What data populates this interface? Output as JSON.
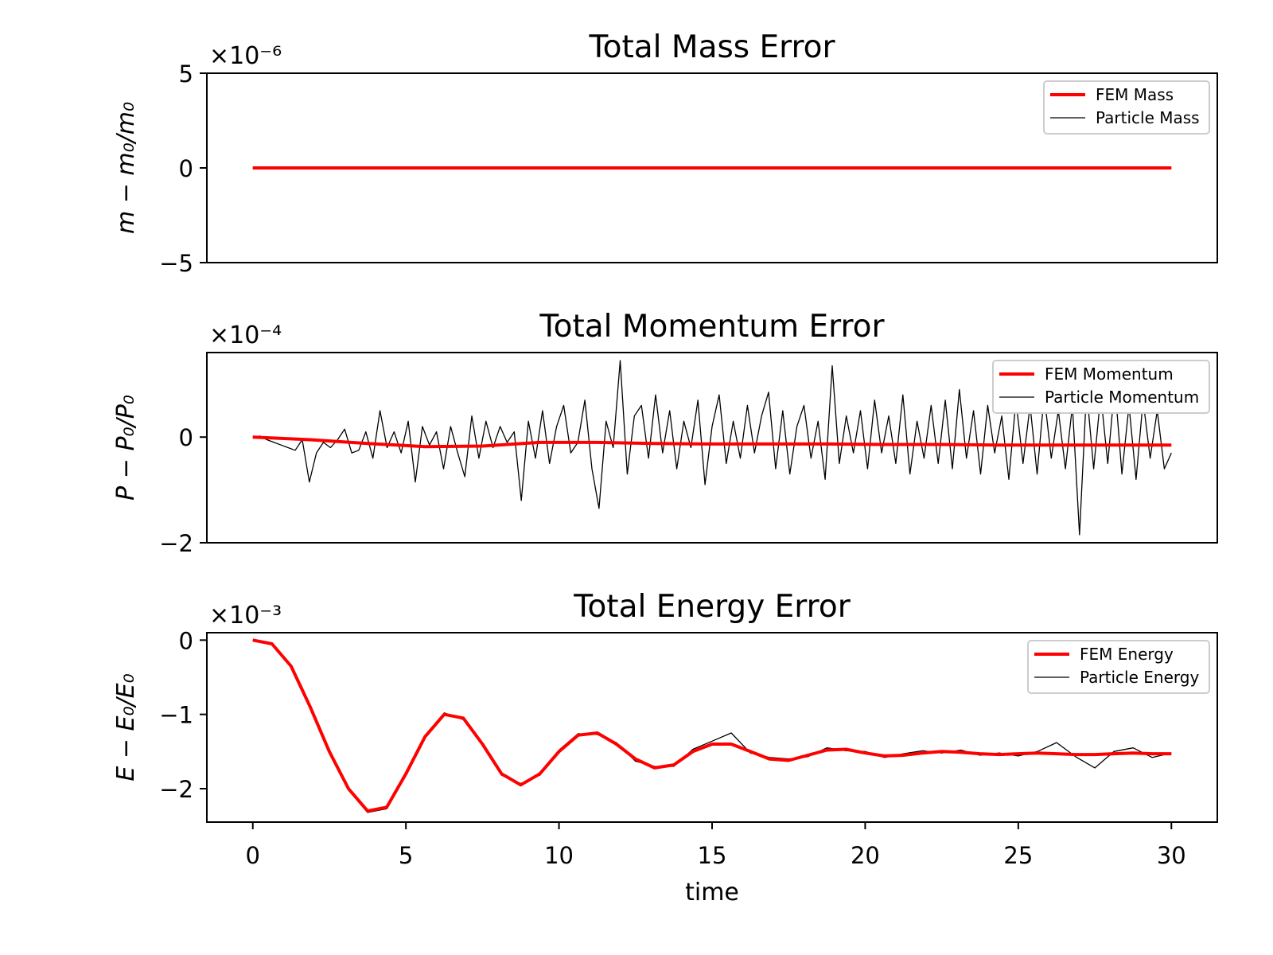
{
  "colors": {
    "fem": "#ff0000",
    "particle": "#000000",
    "axes": "#000000",
    "legend_border": "#cccccc"
  },
  "x_label": "time",
  "x_ticks": [
    0,
    5,
    10,
    15,
    20,
    25,
    30
  ],
  "x_tick_labels": [
    "0",
    "5",
    "10",
    "15",
    "20",
    "25",
    "30"
  ],
  "chart_data": [
    {
      "type": "line",
      "title": "Total Mass Error",
      "ylabel": "m − m₀/m₀",
      "scale_text": "×10⁻⁶",
      "xlim": [
        -1.5,
        31.5
      ],
      "ylim": [
        -5,
        5
      ],
      "y_ticks": [
        -5,
        0,
        5
      ],
      "y_tick_labels": [
        "−5",
        "0",
        "5"
      ],
      "legend_position": "upper right",
      "series": [
        {
          "name": "FEM Mass",
          "kind": "fem",
          "x_range": [
            0,
            30
          ],
          "values": [
            0,
            0,
            0,
            0,
            0,
            0,
            0
          ]
        },
        {
          "name": "Particle Mass",
          "kind": "particle",
          "x_range": [
            0,
            30
          ],
          "values": [
            0,
            0,
            0,
            0,
            0,
            0,
            0
          ]
        }
      ]
    },
    {
      "type": "line",
      "title": "Total Momentum Error",
      "ylabel": "P − P₀/P₀",
      "scale_text": "×10⁻⁴",
      "xlim": [
        -1.5,
        31.5
      ],
      "ylim": [
        -2,
        1.6
      ],
      "y_ticks": [
        -2,
        0
      ],
      "y_tick_labels": [
        "−2",
        "0"
      ],
      "legend_position": "upper right",
      "series": [
        {
          "name": "FEM Momentum",
          "kind": "fem",
          "x_range": [
            0,
            30
          ],
          "values": [
            0,
            -0.05,
            -0.12,
            -0.18,
            -0.17,
            -0.1,
            -0.1,
            -0.12,
            -0.13,
            -0.13,
            -0.13,
            -0.14,
            -0.14,
            -0.15,
            -0.15,
            -0.15,
            -0.15
          ]
        },
        {
          "name": "Particle Momentum",
          "kind": "particle",
          "x_range": [
            0,
            30
          ],
          "values": [
            0,
            0.02,
            -0.05,
            -0.1,
            -0.15,
            -0.2,
            -0.25,
            -0.05,
            -0.85,
            -0.3,
            -0.1,
            -0.2,
            -0.05,
            0.15,
            -0.3,
            -0.25,
            0.1,
            -0.4,
            0.5,
            -0.2,
            0.1,
            -0.3,
            0.3,
            -0.85,
            0.2,
            -0.15,
            0.1,
            -0.6,
            0.2,
            -0.3,
            -0.75,
            0.4,
            -0.4,
            0.3,
            -0.2,
            0.2,
            -0.1,
            0.1,
            -1.2,
            0.3,
            -0.4,
            0.5,
            -0.5,
            0.2,
            0.6,
            -0.3,
            -0.1,
            0.7,
            -0.6,
            -1.35,
            0.3,
            -0.2,
            1.45,
            -0.7,
            0.4,
            0.6,
            -0.4,
            0.8,
            -0.3,
            0.5,
            -0.6,
            0.3,
            -0.2,
            0.7,
            -0.9,
            0.2,
            0.8,
            -0.5,
            0.3,
            -0.4,
            0.6,
            -0.3,
            0.4,
            0.85,
            -0.6,
            0.5,
            -0.7,
            0.2,
            0.6,
            -0.4,
            0.3,
            -0.8,
            1.35,
            -0.5,
            0.4,
            -0.3,
            0.5,
            -0.6,
            0.7,
            -0.3,
            0.4,
            -0.5,
            0.8,
            -0.7,
            0.3,
            -0.4,
            0.6,
            -0.5,
            0.7,
            -0.6,
            0.9,
            -0.4,
            0.5,
            -0.7,
            0.6,
            -0.3,
            0.4,
            -0.8,
            0.7,
            -0.5,
            0.6,
            -0.7,
            0.8,
            -0.4,
            0.5,
            -0.6,
            0.6,
            -1.85,
            0.9,
            -0.6,
            0.8,
            -0.5,
            1.0,
            -0.7,
            0.6,
            -0.8,
            0.7,
            -0.4,
            0.5,
            -0.6,
            -0.3
          ]
        }
      ]
    },
    {
      "type": "line",
      "title": "Total Energy Error",
      "ylabel": "E − E₀/E₀",
      "scale_text": "×10⁻³",
      "xlim": [
        -1.5,
        31.5
      ],
      "ylim": [
        -2.45,
        0.1
      ],
      "y_ticks": [
        -2,
        -1,
        0
      ],
      "y_tick_labels": [
        "−2",
        "−1",
        "0"
      ],
      "legend_position": "upper right",
      "series": [
        {
          "name": "FEM Energy",
          "kind": "fem",
          "x_range": [
            0,
            30
          ],
          "values": [
            0,
            -0.05,
            -0.35,
            -0.9,
            -1.5,
            -2.0,
            -2.3,
            -2.25,
            -1.8,
            -1.3,
            -1.0,
            -1.05,
            -1.4,
            -1.8,
            -1.95,
            -1.8,
            -1.5,
            -1.28,
            -1.25,
            -1.4,
            -1.6,
            -1.72,
            -1.68,
            -1.5,
            -1.4,
            -1.4,
            -1.5,
            -1.6,
            -1.62,
            -1.55,
            -1.48,
            -1.47,
            -1.52,
            -1.56,
            -1.55,
            -1.52,
            -1.5,
            -1.51,
            -1.53,
            -1.54,
            -1.53,
            -1.52,
            -1.53,
            -1.54,
            -1.54,
            -1.53,
            -1.52,
            -1.53,
            -1.53
          ]
        },
        {
          "name": "Particle Energy",
          "kind": "particle",
          "x_range": [
            0,
            30
          ],
          "values": [
            0,
            -0.04,
            -0.36,
            -0.92,
            -1.48,
            -2.02,
            -2.32,
            -2.27,
            -1.78,
            -1.31,
            -0.98,
            -1.07,
            -1.38,
            -1.82,
            -1.93,
            -1.82,
            -1.48,
            -1.26,
            -1.27,
            -1.38,
            -1.63,
            -1.7,
            -1.7,
            -1.47,
            -1.36,
            -1.25,
            -1.52,
            -1.58,
            -1.6,
            -1.57,
            -1.45,
            -1.49,
            -1.5,
            -1.58,
            -1.53,
            -1.49,
            -1.52,
            -1.48,
            -1.55,
            -1.52,
            -1.56,
            -1.5,
            -1.38,
            -1.57,
            -1.72,
            -1.5,
            -1.45,
            -1.58,
            -1.52
          ]
        }
      ]
    }
  ]
}
